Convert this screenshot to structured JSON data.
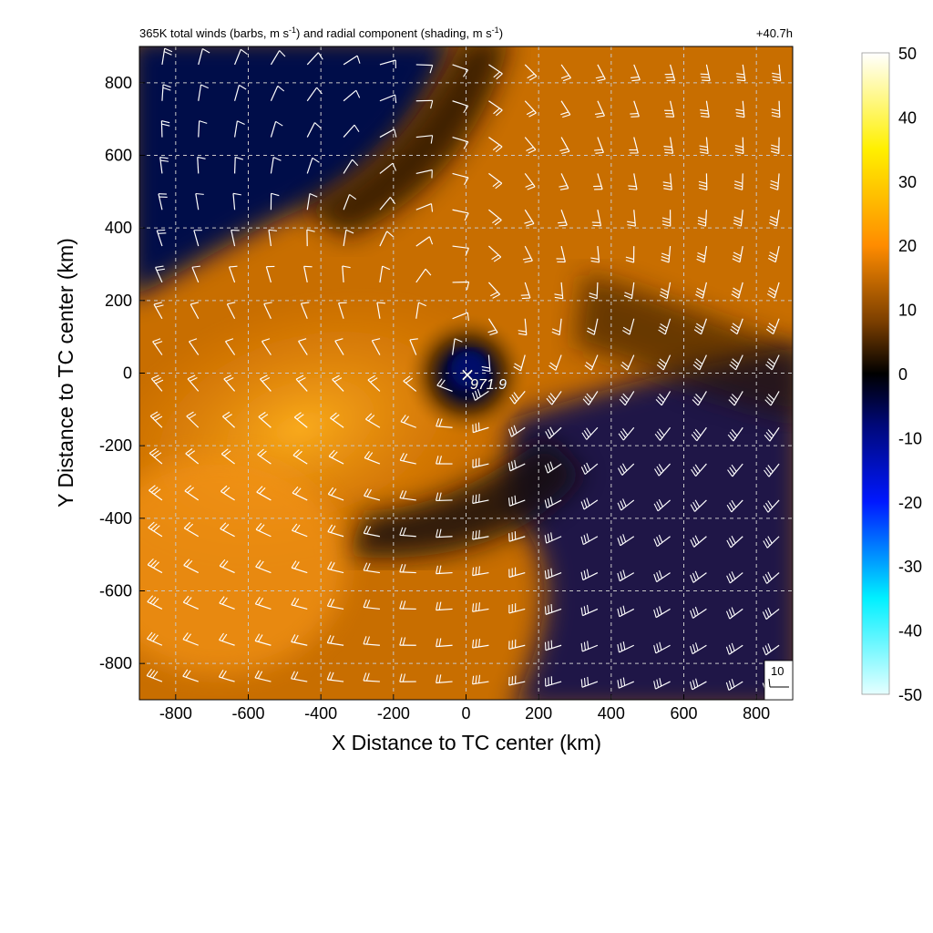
{
  "chart_data": {
    "type": "heatmap",
    "title_left": "365K total winds (barbs, m s",
    "title_unit_exp": "-1",
    "title_mid": ") and radial component (shading, m s",
    "title_end": ")",
    "title_right": "+40.7h",
    "xlabel": "X Distance to TC center (km)",
    "ylabel": "Y Distance to TC center (km)",
    "xlim": [
      -900,
      900
    ],
    "ylim": [
      -900,
      900
    ],
    "xticks": [
      -800,
      -600,
      -400,
      -200,
      0,
      200,
      400,
      600,
      800
    ],
    "yticks": [
      -800,
      -600,
      -400,
      -200,
      0,
      200,
      400,
      600,
      800
    ],
    "grid": true,
    "colorbar": {
      "range": [
        -50,
        50
      ],
      "ticks": [
        50,
        40,
        30,
        20,
        10,
        0,
        -10,
        -20,
        -30,
        -40,
        -50
      ],
      "stops": [
        {
          "v": -50,
          "color": "#e6ffff"
        },
        {
          "v": -35,
          "color": "#00f0ff"
        },
        {
          "v": -20,
          "color": "#0018ff"
        },
        {
          "v": -8,
          "color": "#000878"
        },
        {
          "v": 0,
          "color": "#000000"
        },
        {
          "v": 8,
          "color": "#7a3e00"
        },
        {
          "v": 20,
          "color": "#ff8c00"
        },
        {
          "v": 35,
          "color": "#fff000"
        },
        {
          "v": 50,
          "color": "#ffffff"
        }
      ]
    },
    "center_marker": {
      "x": 0,
      "y": 0,
      "symbol": "×",
      "label": "971.9"
    },
    "reference_barb": {
      "label": "10"
    }
  }
}
